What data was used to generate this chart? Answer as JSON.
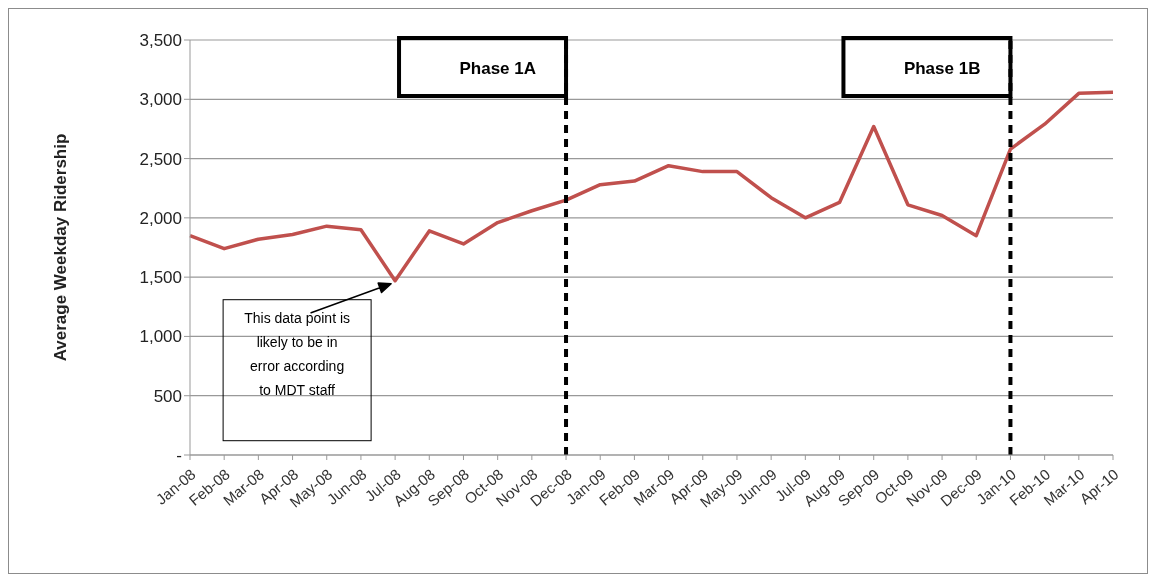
{
  "chart_data": {
    "type": "line",
    "ylabel": "Average Weekday Ridership",
    "categories": [
      "Jan-08",
      "Feb-08",
      "Mar-08",
      "Apr-08",
      "May-08",
      "Jun-08",
      "Jul-08",
      "Aug-08",
      "Sep-08",
      "Oct-08",
      "Nov-08",
      "Dec-08",
      "Jan-09",
      "Feb-09",
      "Mar-09",
      "Apr-09",
      "May-09",
      "Jun-09",
      "Jul-09",
      "Aug-09",
      "Sep-09",
      "Oct-09",
      "Nov-09",
      "Dec-09",
      "Jan-10",
      "Feb-10",
      "Mar-10",
      "Apr-10"
    ],
    "series": [
      {
        "color": "#c0504d",
        "values": [
          1850,
          1740,
          1820,
          1860,
          1930,
          1900,
          1470,
          1890,
          1780,
          1960,
          2060,
          2150,
          2280,
          2310,
          2440,
          2390,
          2390,
          2170,
          2000,
          2130,
          2770,
          2110,
          2020,
          1850,
          2580,
          2790,
          3050,
          3060
        ]
      }
    ],
    "ylim": [
      0,
      3500
    ],
    "yticks": [
      {
        "value": 0,
        "label": "-"
      },
      {
        "value": 500,
        "label": "500"
      },
      {
        "value": 1000,
        "label": "1,000"
      },
      {
        "value": 1500,
        "label": "1,500"
      },
      {
        "value": 2000,
        "label": "2,000"
      },
      {
        "value": 2500,
        "label": "2,500"
      },
      {
        "value": 3000,
        "label": "3,000"
      },
      {
        "value": 3500,
        "label": "3,500"
      }
    ],
    "grid": "y",
    "legend": false,
    "marker": "none",
    "line_style": "solid",
    "ref_lines": [
      {
        "axis": "x",
        "value": "Dec-08",
        "label": "Phase 1A",
        "color": "#000000",
        "line_style": "dashed"
      },
      {
        "axis": "x",
        "value": "Jan-10",
        "label": "Phase 1B",
        "color": "#000000",
        "line_style": "dashed"
      }
    ],
    "annotations": [
      "This data point is likely to be in error according to MDT staff"
    ]
  }
}
